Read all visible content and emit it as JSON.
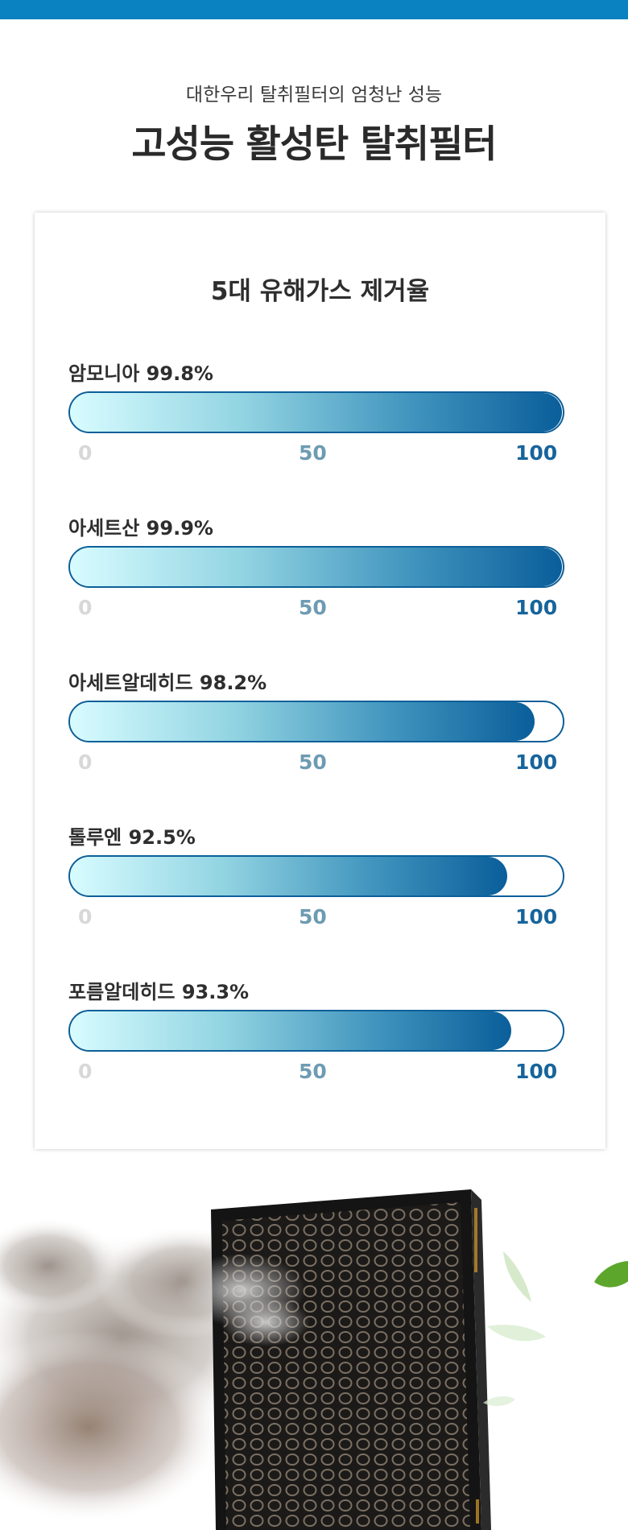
{
  "header": {
    "subtitle": "대한우리 탈취필터의 엄청난 성능",
    "title": "고성능 활성탄 탈취필터"
  },
  "card": {
    "title": "5대 유해가스 제거율",
    "gases": [
      {
        "label": "암모니아 99.8%",
        "value": 99.8
      },
      {
        "label": "아세트산 99.9%",
        "value": 99.9
      },
      {
        "label": "아세트알데히드 98.2%",
        "value": 98.2
      },
      {
        "label": "톨루엔 92.5%",
        "value": 92.5
      },
      {
        "label": "포름알데히드 93.3%",
        "value": 93.3
      }
    ],
    "ticks": [
      "0",
      "50",
      "100"
    ]
  },
  "colors": {
    "accent": "#0a82c2",
    "bar_dark": "#0a5e9a",
    "bar_light": "#d8fcff"
  },
  "image": {
    "icon": "activated-carbon-filter-with-smoke-and-leaves"
  }
}
